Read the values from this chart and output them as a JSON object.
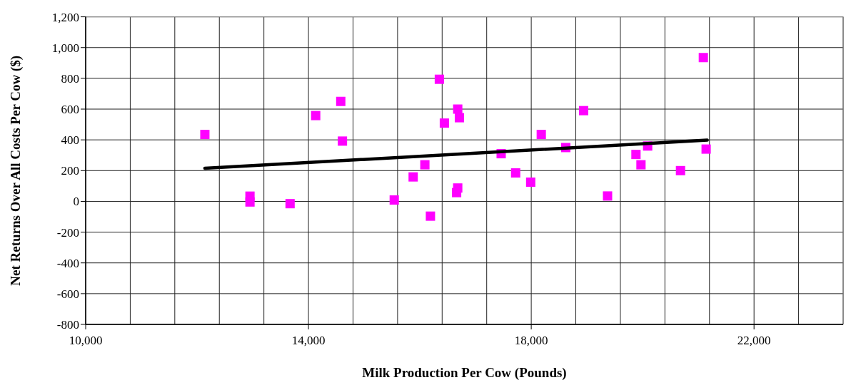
{
  "chart_data": {
    "type": "scatter",
    "xlabel": "Milk Production Per Cow (Pounds)",
    "ylabel": "Net Returns Over All Costs Per Cow ($)",
    "xlim": [
      10000,
      23600
    ],
    "xticks": [
      {
        "value": 10000,
        "label": "10,000"
      },
      {
        "value": 10800,
        "label": null
      },
      {
        "value": 11600,
        "label": null
      },
      {
        "value": 12400,
        "label": null
      },
      {
        "value": 13200,
        "label": null
      },
      {
        "value": 14000,
        "label": "14,000"
      },
      {
        "value": 14800,
        "label": null
      },
      {
        "value": 15600,
        "label": null
      },
      {
        "value": 16400,
        "label": null
      },
      {
        "value": 17200,
        "label": null
      },
      {
        "value": 18000,
        "label": "18,000"
      },
      {
        "value": 18800,
        "label": null
      },
      {
        "value": 19600,
        "label": null
      },
      {
        "value": 20400,
        "label": null
      },
      {
        "value": 21200,
        "label": null
      },
      {
        "value": 22000,
        "label": "22,000"
      },
      {
        "value": 22800,
        "label": null
      },
      {
        "value": 23600,
        "label": null
      }
    ],
    "ylim": [
      -800,
      1200
    ],
    "yticks": [
      {
        "value": -800,
        "label": "-800"
      },
      {
        "value": -600,
        "label": "-600"
      },
      {
        "value": -400,
        "label": "-400"
      },
      {
        "value": -200,
        "label": "-200"
      },
      0,
      200,
      400,
      600,
      800,
      {
        "value": 1000,
        "label": "1,000"
      },
      {
        "value": 1200,
        "label": "1,200"
      }
    ],
    "grid": true,
    "series": [
      {
        "color": "#ff00ff",
        "marker": "square",
        "x": [
          12140,
          12950,
          12950,
          13670,
          14130,
          14580,
          14610,
          15540,
          15880,
          16090,
          16190,
          16350,
          16440,
          16680,
          16710,
          16680,
          16660,
          17460,
          17720,
          17990,
          18180,
          18620,
          18940,
          19370,
          19880,
          19970,
          20090,
          20680,
          21090,
          21140
        ],
        "values": [
          435,
          34,
          -4,
          -15,
          558,
          650,
          392,
          9,
          159,
          238,
          -96,
          794,
          509,
          600,
          544,
          87,
          57,
          310,
          185,
          125,
          435,
          350,
          590,
          35,
          305,
          238,
          360,
          200,
          935,
          340
        ]
      },
      {
        "type": "line",
        "color": "#000000",
        "marker": "none",
        "line_style": "solid",
        "x": [
          12140,
          21160
        ],
        "values": [
          215,
          398
        ]
      }
    ]
  }
}
